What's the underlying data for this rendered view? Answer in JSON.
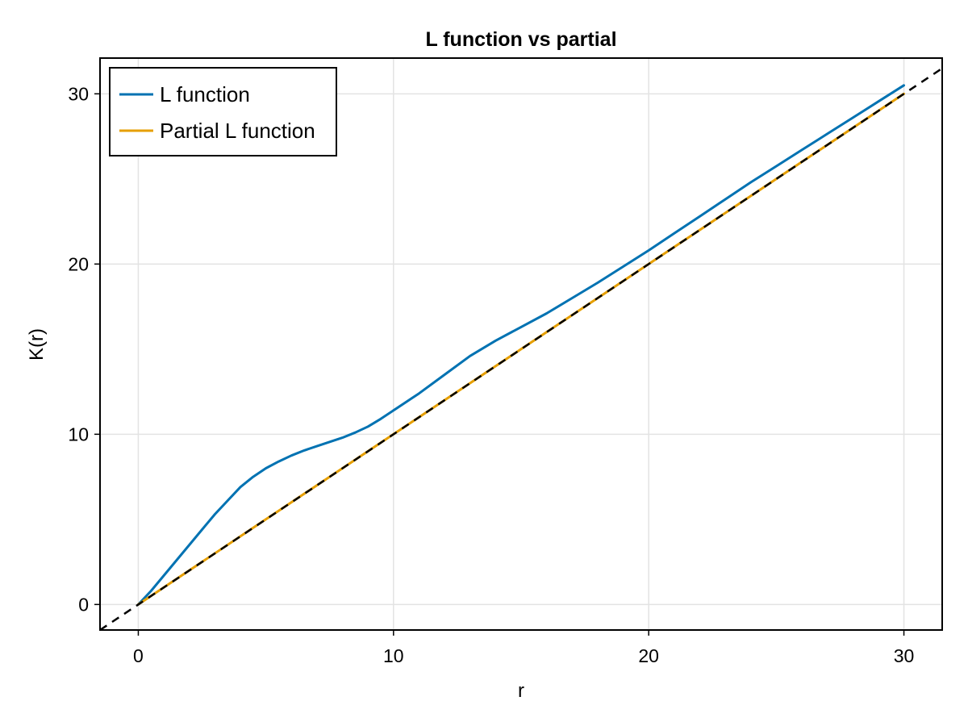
{
  "chart_data": {
    "type": "line",
    "title": "L function vs partial",
    "xlabel": "r",
    "ylabel": "K(r)",
    "xlim": [
      -1.5,
      31.5
    ],
    "ylim": [
      -1.5,
      32.1
    ],
    "xticks": [
      0,
      10,
      20,
      30
    ],
    "yticks": [
      0,
      10,
      20,
      30
    ],
    "grid": true,
    "legend_position": "top-left",
    "series": [
      {
        "name": "L function",
        "color": "#0072b2",
        "style": "solid",
        "x": [
          0,
          0.5,
          1,
          1.5,
          2,
          2.5,
          3,
          3.5,
          4,
          4.5,
          5,
          5.5,
          6,
          6.5,
          7,
          7.5,
          8,
          8.5,
          9,
          9.5,
          10,
          11,
          12,
          13,
          14,
          15,
          16,
          17,
          18,
          19,
          20,
          21,
          22,
          23,
          24,
          25,
          26,
          27,
          28,
          29,
          30
        ],
        "y": [
          0,
          0.8,
          1.7,
          2.6,
          3.5,
          4.4,
          5.3,
          6.1,
          6.9,
          7.5,
          8.0,
          8.4,
          8.75,
          9.05,
          9.3,
          9.55,
          9.8,
          10.1,
          10.45,
          10.9,
          11.4,
          12.4,
          13.5,
          14.6,
          15.5,
          16.3,
          17.1,
          18.0,
          18.9,
          19.85,
          20.8,
          21.8,
          22.8,
          23.8,
          24.8,
          25.75,
          26.7,
          27.65,
          28.6,
          29.55,
          30.5
        ]
      },
      {
        "name": "Partial L function",
        "color": "#e69f00",
        "style": "solid",
        "x": [
          0,
          5,
          10,
          15,
          20,
          25,
          30
        ],
        "y": [
          0,
          5,
          10,
          15,
          20,
          25,
          30
        ]
      },
      {
        "color": "#000000",
        "style": "dashed",
        "x": [
          -1.5,
          31.5
        ],
        "y": [
          -1.5,
          31.5
        ]
      }
    ]
  }
}
